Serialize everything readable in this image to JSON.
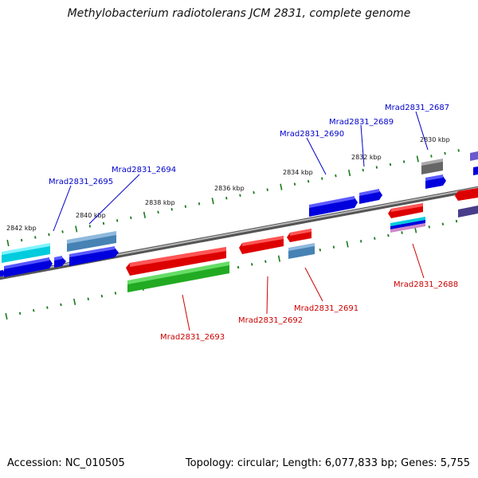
{
  "title": "Methylobacterium radiotolerans JCM 2831, complete genome",
  "footer": {
    "accession": "Accession: NC_010505",
    "summary": "Topology: circular; Length: 6,077,833 bp; Genes: 5,755"
  },
  "colors": {
    "backbone": "#8a8a8a",
    "tick": "#1a7a1a",
    "forward_label": "#0000cc",
    "reverse_label": "#cc0000"
  },
  "scale_labels": [
    "2842 kbp",
    "2840 kbp",
    "2838 kbp",
    "2836 kbp",
    "2834 kbp",
    "2832 kbp",
    "2830 kbp"
  ],
  "gene_labels": {
    "forward": [
      "Mrad2831_2695",
      "Mrad2831_2694",
      "Mrad2831_2690",
      "Mrad2831_2689",
      "Mrad2831_2687"
    ],
    "reverse": [
      "Mrad2831_2693",
      "Mrad2831_2692",
      "Mrad2831_2691",
      "Mrad2831_2688"
    ]
  }
}
